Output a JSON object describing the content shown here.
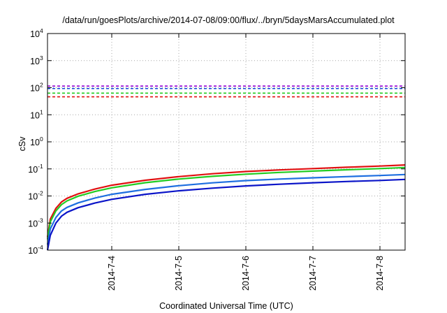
{
  "chart_data": {
    "type": "line",
    "title": "/data/run/goesPlots/archive/2014-07-08/09:00/flux/../bryn/5daysMarsAccumulated.plot",
    "xlabel": "Coordinated Universal Time (UTC)",
    "ylabel": "cSv",
    "yscale": "log",
    "ylim": [
      0.0001,
      10000
    ],
    "xlim": [
      "2014-07-03T01:00",
      "2014-07-08T09:00"
    ],
    "grid": true,
    "yticks": [
      {
        "base": "10",
        "exp": "-4",
        "value": 0.0001
      },
      {
        "base": "10",
        "exp": "-3",
        "value": 0.001
      },
      {
        "base": "10",
        "exp": "-2",
        "value": 0.01
      },
      {
        "base": "10",
        "exp": "-1",
        "value": 0.1
      },
      {
        "base": "10",
        "exp": "0",
        "value": 1
      },
      {
        "base": "10",
        "exp": "1",
        "value": 10
      },
      {
        "base": "10",
        "exp": "2",
        "value": 100
      },
      {
        "base": "10",
        "exp": "3",
        "value": 1000
      },
      {
        "base": "10",
        "exp": "4",
        "value": 10000
      }
    ],
    "xticks": [
      {
        "label": "2014-7-4",
        "value": "2014-07-04T00:00"
      },
      {
        "label": "2014-7-5",
        "value": "2014-07-05T00:00"
      },
      {
        "label": "2014-7-6",
        "value": "2014-07-06T00:00"
      },
      {
        "label": "2014-7-7",
        "value": "2014-07-07T00:00"
      },
      {
        "label": "2014-7-8",
        "value": "2014-07-08T00:00"
      }
    ],
    "thresholds": [
      {
        "value": 115,
        "color": "#9400d3",
        "style": "dashed"
      },
      {
        "value": 93,
        "color": "#1a4fd8",
        "style": "dashed"
      },
      {
        "value": 63,
        "color": "#22cc22",
        "style": "dashed"
      },
      {
        "value": 46,
        "color": "#e01010",
        "style": "dashed"
      }
    ],
    "series": [
      {
        "color": "#e01010",
        "x": [
          "2014-07-03T01:00",
          "2014-07-03T02:00",
          "2014-07-03T04:00",
          "2014-07-03T06:00",
          "2014-07-03T08:00",
          "2014-07-03T12:00",
          "2014-07-03T18:00",
          "2014-07-04T00:00",
          "2014-07-04T12:00",
          "2014-07-05T00:00",
          "2014-07-05T12:00",
          "2014-07-06T00:00",
          "2014-07-06T12:00",
          "2014-07-07T00:00",
          "2014-07-07T12:00",
          "2014-07-08T00:00",
          "2014-07-08T09:00"
        ],
        "y": [
          0.0003,
          0.0014,
          0.0035,
          0.006,
          0.0082,
          0.012,
          0.018,
          0.025,
          0.038,
          0.052,
          0.066,
          0.08,
          0.092,
          0.103,
          0.115,
          0.127,
          0.14
        ]
      },
      {
        "color": "#22cc22",
        "x": [
          "2014-07-03T01:00",
          "2014-07-03T02:00",
          "2014-07-03T04:00",
          "2014-07-03T06:00",
          "2014-07-03T08:00",
          "2014-07-03T12:00",
          "2014-07-03T18:00",
          "2014-07-04T00:00",
          "2014-07-04T12:00",
          "2014-07-05T00:00",
          "2014-07-05T12:00",
          "2014-07-06T00:00",
          "2014-07-06T12:00",
          "2014-07-07T00:00",
          "2014-07-07T12:00",
          "2014-07-08T00:00",
          "2014-07-08T09:00"
        ],
        "y": [
          0.00025,
          0.0011,
          0.0028,
          0.0048,
          0.0066,
          0.0098,
          0.0146,
          0.02,
          0.031,
          0.042,
          0.053,
          0.064,
          0.074,
          0.083,
          0.093,
          0.103,
          0.112
        ]
      },
      {
        "color": "#1e6fe0",
        "x": [
          "2014-07-03T01:00",
          "2014-07-03T02:00",
          "2014-07-03T04:00",
          "2014-07-03T06:00",
          "2014-07-03T08:00",
          "2014-07-03T12:00",
          "2014-07-03T18:00",
          "2014-07-04T00:00",
          "2014-07-04T12:00",
          "2014-07-05T00:00",
          "2014-07-05T12:00",
          "2014-07-06T00:00",
          "2014-07-06T12:00",
          "2014-07-07T00:00",
          "2014-07-07T12:00",
          "2014-07-08T00:00",
          "2014-07-08T09:00"
        ],
        "y": [
          0.00016,
          0.0006,
          0.0016,
          0.0028,
          0.0038,
          0.0056,
          0.0084,
          0.0115,
          0.0175,
          0.024,
          0.0305,
          0.037,
          0.042,
          0.047,
          0.052,
          0.057,
          0.062
        ]
      },
      {
        "color": "#0a14c8",
        "x": [
          "2014-07-03T01:00",
          "2014-07-03T02:00",
          "2014-07-03T04:00",
          "2014-07-03T06:00",
          "2014-07-03T08:00",
          "2014-07-03T12:00",
          "2014-07-03T18:00",
          "2014-07-04T00:00",
          "2014-07-04T12:00",
          "2014-07-05T00:00",
          "2014-07-05T12:00",
          "2014-07-06T00:00",
          "2014-07-06T12:00",
          "2014-07-07T00:00",
          "2014-07-07T12:00",
          "2014-07-08T00:00",
          "2014-07-08T09:00"
        ],
        "y": [
          0.0001,
          0.00035,
          0.001,
          0.0018,
          0.0025,
          0.0037,
          0.0055,
          0.0075,
          0.0115,
          0.0155,
          0.0195,
          0.0235,
          0.0272,
          0.0308,
          0.0342,
          0.0375,
          0.041
        ]
      }
    ]
  }
}
